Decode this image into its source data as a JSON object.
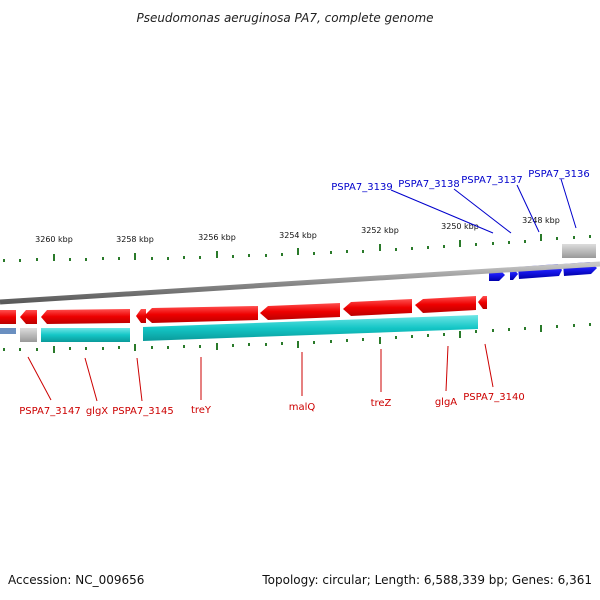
{
  "title": "Pseudomonas aeruginosa PA7, complete genome",
  "footer": {
    "accession": "Accession: NC_009656",
    "summary": "Topology: circular; Length: 6,588,339 bp; Genes: 6,361"
  },
  "colors": {
    "backbone": "#8a8a8a",
    "forward_gene": "#1a1aee",
    "reverse_gene": "#e00000",
    "rna_track": "#12c4c4",
    "pseudo": "#b5b5b5",
    "ticks": "#2a7a2a",
    "top_label": "#0000cc",
    "bottom_label": "#cc0000"
  },
  "scale": {
    "unit": "kbp",
    "labels": [
      "3260 kbp",
      "3258 kbp",
      "3256 kbp",
      "3254 kbp",
      "3252 kbp",
      "3250 kbp",
      "3248 kbp"
    ]
  },
  "top_labels": [
    "PSPA7_3139",
    "PSPA7_3138",
    "PSPA7_3137",
    "PSPA7_3136"
  ],
  "bottom_labels": [
    "PSPA7_3147",
    "glgX",
    "PSPA7_3145",
    "treY",
    "malQ",
    "treZ",
    "glgA",
    "PSPA7_3140"
  ]
}
